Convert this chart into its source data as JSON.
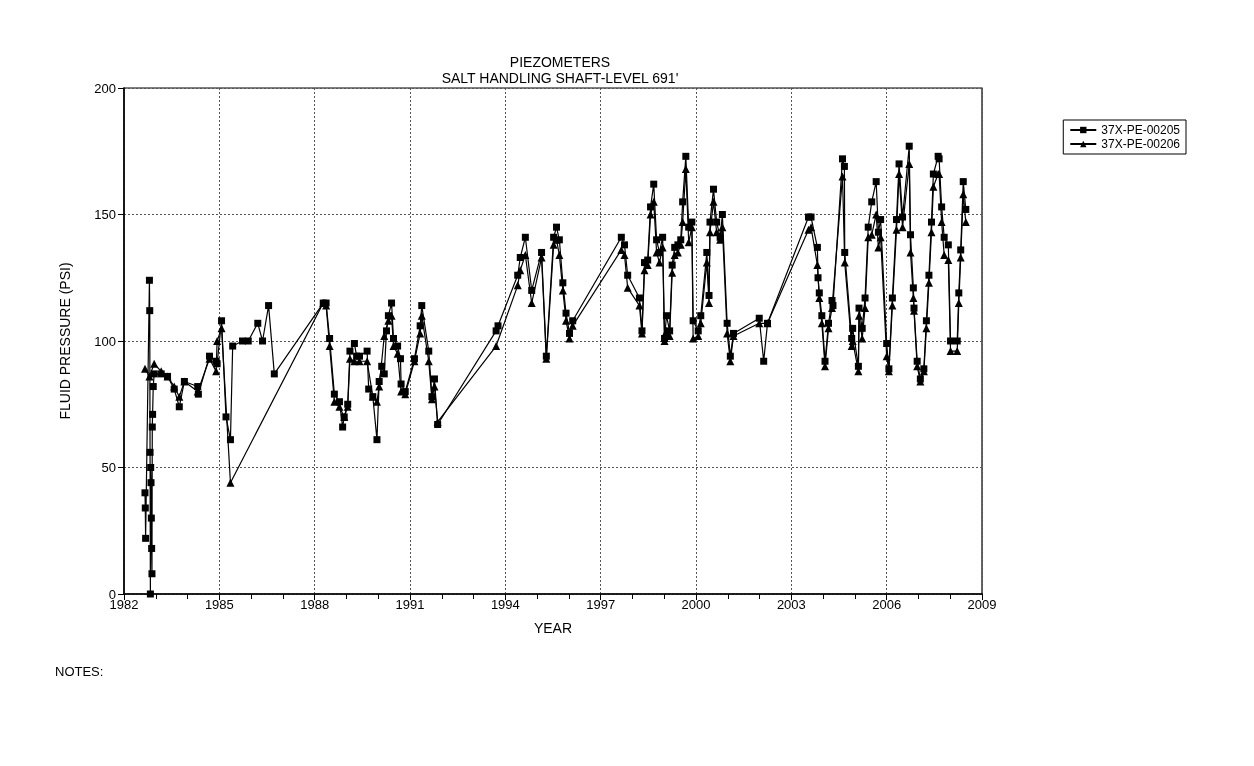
{
  "chart_data": {
    "type": "line",
    "title": "PIEZOMETERS",
    "subtitle": "SALT HANDLING SHAFT-LEVEL 691'",
    "xlabel": "YEAR",
    "ylabel": "FLUID PRESSURE (PSI)",
    "annotations": [
      "NOTES:"
    ],
    "xlim": [
      1982,
      2009
    ],
    "xticks": [
      1982,
      {
        "value": 1983,
        "label": null
      },
      {
        "value": 1984,
        "label": null
      },
      1985,
      {
        "value": 1986,
        "label": null
      },
      {
        "value": 1987,
        "label": null
      },
      1988,
      {
        "value": 1989,
        "label": null
      },
      {
        "value": 1990,
        "label": null
      },
      1991,
      {
        "value": 1992,
        "label": null
      },
      {
        "value": 1993,
        "label": null
      },
      1994,
      {
        "value": 1995,
        "label": null
      },
      {
        "value": 1996,
        "label": null
      },
      1997,
      {
        "value": 1998,
        "label": null
      },
      {
        "value": 1999,
        "label": null
      },
      2000,
      {
        "value": 2001,
        "label": null
      },
      {
        "value": 2002,
        "label": null
      },
      2003,
      {
        "value": 2004,
        "label": null
      },
      {
        "value": 2005,
        "label": null
      },
      2006,
      {
        "value": 2007,
        "label": null
      },
      {
        "value": 2008,
        "label": null
      },
      2009
    ],
    "ylim": [
      0,
      200
    ],
    "yticks": [
      0,
      50,
      100,
      150,
      200
    ],
    "grid": true,
    "legend": "top right",
    "line_style": "solid",
    "series": [
      {
        "name": "37X-PE-00205",
        "color": "#000000",
        "marker": "square",
        "x": [
          1982.66,
          1982.67,
          1982.68,
          1982.8,
          1982.81,
          1982.82,
          1982.83,
          1982.84,
          1982.85,
          1982.86,
          1982.87,
          1982.88,
          1982.89,
          1982.9,
          1982.92,
          1982.95,
          1983.17,
          1983.37,
          1983.58,
          1983.74,
          1983.9,
          1984.32,
          1984.34,
          1984.69,
          1984.9,
          1984.93,
          1985.07,
          1985.21,
          1985.35,
          1985.42,
          1985.73,
          1985.91,
          1986.21,
          1986.36,
          1986.55,
          1986.73,
          1988.27,
          1988.36,
          1988.47,
          1988.62,
          1988.78,
          1988.88,
          1988.93,
          1989.04,
          1989.11,
          1989.25,
          1989.32,
          1989.41,
          1989.65,
          1989.7,
          1989.83,
          1989.96,
          1990.03,
          1990.11,
          1990.19,
          1990.26,
          1990.32,
          1990.42,
          1990.48,
          1990.61,
          1990.7,
          1990.72,
          1990.85,
          1991.14,
          1991.32,
          1991.37,
          1991.59,
          1991.69,
          1991.77,
          1991.87,
          1993.71,
          1993.77,
          1994.39,
          1994.47,
          1994.63,
          1994.83,
          1995.14,
          1995.29,
          1995.52,
          1995.61,
          1995.7,
          1995.81,
          1995.91,
          1996.02,
          1996.12,
          1997.65,
          1997.75,
          1997.85,
          1998.22,
          1998.3,
          1998.38,
          1998.48,
          1998.57,
          1998.67,
          1998.76,
          1998.85,
          1998.95,
          1999.01,
          1999.07,
          1999.17,
          1999.25,
          1999.33,
          1999.43,
          1999.52,
          1999.58,
          1999.68,
          1999.77,
          1999.87,
          1999.91,
          2000.07,
          2000.15,
          2000.34,
          2000.41,
          2000.44,
          2000.55,
          2000.65,
          2000.76,
          2000.83,
          2000.98,
          2001.08,
          2001.18,
          2001.99,
          2002.13,
          2002.25,
          2003.54,
          2003.62,
          2003.82,
          2003.84,
          2003.88,
          2003.96,
          2004.06,
          2004.17,
          2004.28,
          2004.31,
          2004.61,
          2004.67,
          2004.68,
          2004.9,
          2004.93,
          2005.11,
          2005.13,
          2005.23,
          2005.32,
          2005.42,
          2005.53,
          2005.67,
          2005.74,
          2005.81,
          2006.0,
          2006.07,
          2006.18,
          2006.31,
          2006.39,
          2006.5,
          2006.71,
          2006.75,
          2006.84,
          2006.86,
          2006.96,
          2007.06,
          2007.17,
          2007.25,
          2007.33,
          2007.41,
          2007.47,
          2007.62,
          2007.65,
          2007.73,
          2007.81,
          2007.94,
          2008.01,
          2008.22,
          2008.27,
          2008.33,
          2008.41,
          2008.49
        ],
        "values": [
          40,
          34,
          22,
          124,
          112,
          56,
          0,
          50,
          44,
          30,
          18,
          8,
          66,
          71,
          82,
          87,
          87,
          86,
          81,
          74,
          84,
          82,
          79,
          94,
          92,
          91,
          108,
          70,
          61,
          98,
          100,
          100,
          107,
          100,
          114,
          87,
          115,
          115,
          101,
          79,
          76,
          66,
          70,
          75,
          96,
          99,
          94,
          94,
          96,
          81,
          78,
          61,
          84,
          90,
          87,
          104,
          110,
          115,
          101,
          98,
          93,
          83,
          80,
          93,
          106,
          114,
          96,
          78,
          85,
          67,
          104,
          106,
          126,
          133,
          141,
          120,
          135,
          94,
          141,
          145,
          140,
          123,
          111,
          103,
          108,
          141,
          138,
          126,
          117,
          104,
          131,
          132,
          153,
          162,
          140,
          135,
          141,
          101,
          110,
          104,
          130,
          137,
          138,
          140,
          155,
          173,
          145,
          147,
          108,
          104,
          110,
          135,
          118,
          147,
          160,
          147,
          141,
          150,
          107,
          94,
          103,
          109,
          92,
          107,
          149,
          149,
          137,
          125,
          119,
          110,
          92,
          107,
          116,
          114,
          172,
          169,
          135,
          101,
          105,
          90,
          113,
          105,
          117,
          145,
          155,
          163,
          143,
          148,
          99,
          89,
          117,
          148,
          170,
          149,
          177,
          142,
          121,
          113,
          92,
          85,
          89,
          108,
          126,
          147,
          166,
          173,
          172,
          153,
          141,
          138,
          100,
          100,
          119,
          136,
          163,
          152
        ]
      },
      {
        "name": "37X-PE-00206",
        "color": "#000000",
        "marker": "triangle",
        "x": [
          1982.66,
          1982.8,
          1982.95,
          1983.17,
          1983.37,
          1983.58,
          1983.74,
          1983.9,
          1984.32,
          1984.69,
          1984.9,
          1984.93,
          1985.07,
          1985.35,
          1988.27,
          1988.36,
          1988.47,
          1988.62,
          1988.78,
          1988.93,
          1989.04,
          1989.11,
          1989.25,
          1989.41,
          1989.65,
          1989.83,
          1989.96,
          1990.03,
          1990.19,
          1990.32,
          1990.42,
          1990.48,
          1990.61,
          1990.72,
          1990.85,
          1991.14,
          1991.32,
          1991.37,
          1991.59,
          1991.69,
          1991.77,
          1991.87,
          1993.71,
          1994.39,
          1994.47,
          1994.63,
          1994.83,
          1995.14,
          1995.29,
          1995.52,
          1995.61,
          1995.7,
          1995.81,
          1995.91,
          1996.02,
          1996.12,
          1997.65,
          1997.75,
          1997.85,
          1998.22,
          1998.3,
          1998.38,
          1998.48,
          1998.57,
          1998.67,
          1998.76,
          1998.85,
          1998.95,
          1999.01,
          1999.07,
          1999.17,
          1999.25,
          1999.33,
          1999.43,
          1999.52,
          1999.58,
          1999.68,
          1999.77,
          1999.87,
          1999.91,
          2000.07,
          2000.15,
          2000.34,
          2000.41,
          2000.44,
          2000.55,
          2000.65,
          2000.76,
          2000.83,
          2000.98,
          2001.08,
          2001.18,
          2001.99,
          2002.25,
          2003.54,
          2003.62,
          2003.82,
          2003.88,
          2003.96,
          2004.06,
          2004.17,
          2004.28,
          2004.61,
          2004.68,
          2004.9,
          2004.93,
          2005.11,
          2005.13,
          2005.23,
          2005.32,
          2005.42,
          2005.53,
          2005.67,
          2005.74,
          2005.81,
          2006.0,
          2006.07,
          2006.18,
          2006.31,
          2006.39,
          2006.5,
          2006.71,
          2006.75,
          2006.84,
          2006.86,
          2006.96,
          2007.06,
          2007.17,
          2007.25,
          2007.33,
          2007.41,
          2007.47,
          2007.62,
          2007.65,
          2007.73,
          2007.81,
          2007.94,
          2008.01,
          2008.22,
          2008.27,
          2008.33,
          2008.41,
          2008.49
        ],
        "values": [
          89,
          86,
          91,
          88,
          86,
          82,
          78,
          84,
          80,
          93,
          88,
          100,
          105,
          44,
          115,
          114,
          98,
          76,
          74,
          70,
          74,
          93,
          92,
          92,
          92,
          78,
          76,
          82,
          102,
          108,
          110,
          98,
          95,
          80,
          79,
          92,
          103,
          110,
          92,
          77,
          82,
          68,
          98,
          122,
          128,
          134,
          115,
          133,
          93,
          138,
          140,
          134,
          120,
          108,
          101,
          106,
          136,
          134,
          121,
          114,
          103,
          128,
          130,
          150,
          155,
          135,
          131,
          137,
          100,
          104,
          102,
          127,
          134,
          135,
          138,
          147,
          168,
          139,
          145,
          101,
          102,
          107,
          131,
          115,
          143,
          155,
          143,
          140,
          145,
          103,
          92,
          102,
          107,
          107,
          144,
          145,
          130,
          117,
          107,
          90,
          105,
          113,
          165,
          131,
          98,
          100,
          88,
          110,
          101,
          113,
          141,
          142,
          150,
          137,
          141,
          94,
          88,
          114,
          144,
          166,
          145,
          170,
          135,
          117,
          112,
          90,
          84,
          88,
          105,
          123,
          143,
          161,
          166,
          166,
          147,
          134,
          132,
          96,
          96,
          115,
          133,
          158,
          147
        ]
      }
    ]
  }
}
